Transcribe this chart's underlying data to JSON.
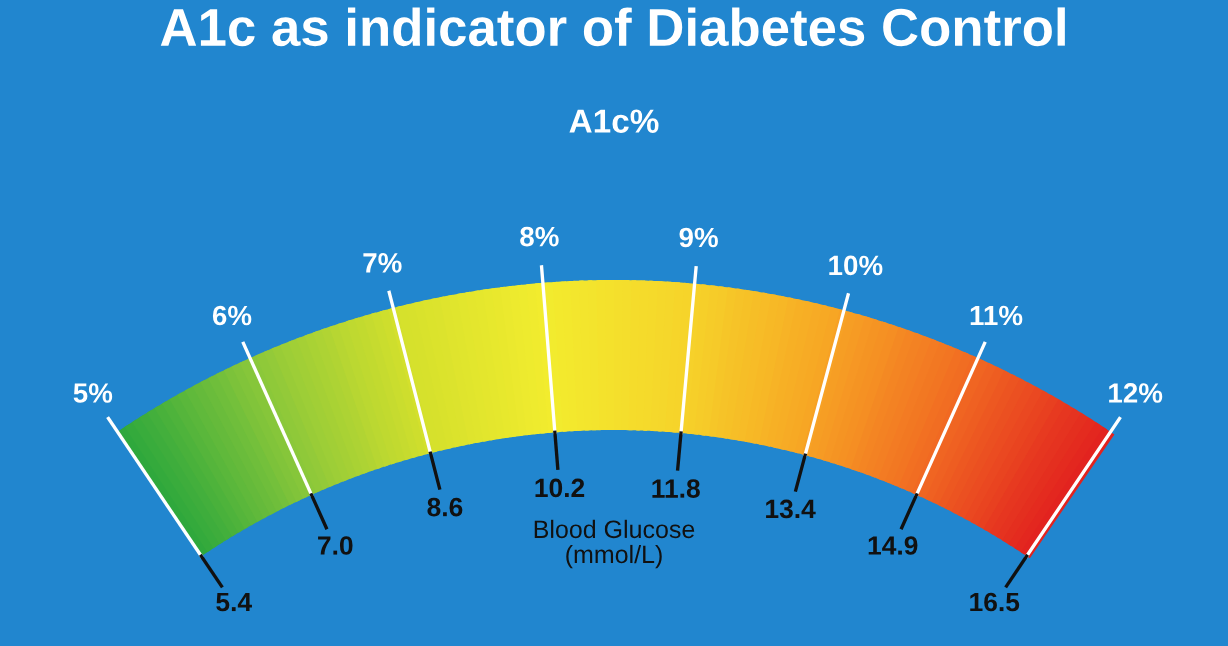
{
  "chart_data": {
    "type": "other",
    "title": "A1c as indicator of Diabetes Control",
    "subtitle": "A1c%",
    "categories": [
      "5%",
      "6%",
      "7%",
      "8%",
      "9%",
      "10%",
      "11%",
      "12%"
    ],
    "values": [
      5.4,
      7.0,
      8.6,
      10.2,
      11.8,
      13.4,
      14.9,
      16.5
    ],
    "value_labels": [
      "5.4",
      "7.0",
      "8.6",
      "10.2",
      "11.8",
      "13.4",
      "14.9",
      "16.5"
    ],
    "colors": [
      "#2fa83c",
      "#8cc83a",
      "#d4e02c",
      "#f2ec2e",
      "#f6d42a",
      "#f7a624",
      "#f16a22",
      "#e2231f"
    ],
    "annotations": [
      "Blood Glucose\n(mmol/L)"
    ]
  }
}
